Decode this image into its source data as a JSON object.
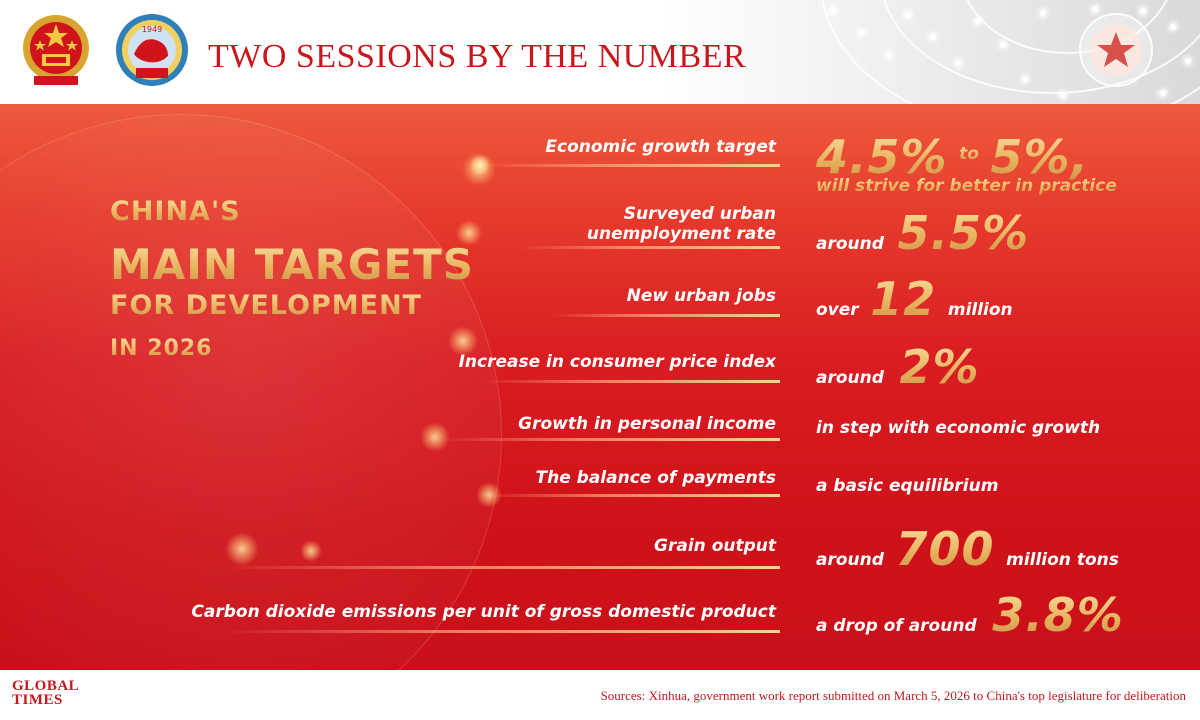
{
  "header": {
    "title": "TWO SESSIONS BY THE NUMBER",
    "emblem_1_icon": "national-emblem-icon",
    "emblem_2_icon": "cppcc-emblem-icon",
    "emblem_2_year": "1949",
    "decoration_icon": "red-star-icon",
    "title_color": "#c8161d"
  },
  "left": {
    "line1": "CHINA'S",
    "line2": "MAIN TARGETS",
    "line3": "FOR DEVELOPMENT",
    "line4": "IN 2026"
  },
  "targets": [
    {
      "label_lines": [
        "Economic growth target"
      ],
      "value": {
        "big1": "4.5%",
        "small1": "to",
        "big2": "5%,",
        "sub": "will strive for better in practice"
      }
    },
    {
      "label_lines": [
        "Surveyed urban",
        "unemployment rate"
      ],
      "value": {
        "pre": "around",
        "big": "5.5%",
        "post": ""
      }
    },
    {
      "label_lines": [
        "New urban jobs"
      ],
      "value": {
        "pre": "over",
        "big": "12",
        "post": "million"
      }
    },
    {
      "label_lines": [
        "Increase in consumer price index"
      ],
      "value": {
        "pre": "around",
        "big": "2%",
        "post": ""
      }
    },
    {
      "label_lines": [
        "Growth in personal income"
      ],
      "value": {
        "text": "in step with economic growth"
      }
    },
    {
      "label_lines": [
        "The balance of payments"
      ],
      "value": {
        "text": "a basic equilibrium"
      }
    },
    {
      "label_lines": [
        "Grain output"
      ],
      "value": {
        "pre": "around",
        "big": "700",
        "post": "million tons"
      }
    },
    {
      "label_lines": [
        "Carbon dioxide emissions per unit of gross domestic product"
      ],
      "value": {
        "pre": "a drop of around",
        "big": "3.8%",
        "post": ""
      }
    }
  ],
  "footer": {
    "logo_line1": "GLOBAL",
    "logo_line2": "TIMES",
    "source": "Sources: Xinhua, government work report submitted on March 5, 2026 to China's top legislature for deliberation"
  },
  "colors": {
    "panel_red": "#d91d22",
    "gold": "#e8b45f",
    "footer_text": "#c8161d"
  }
}
